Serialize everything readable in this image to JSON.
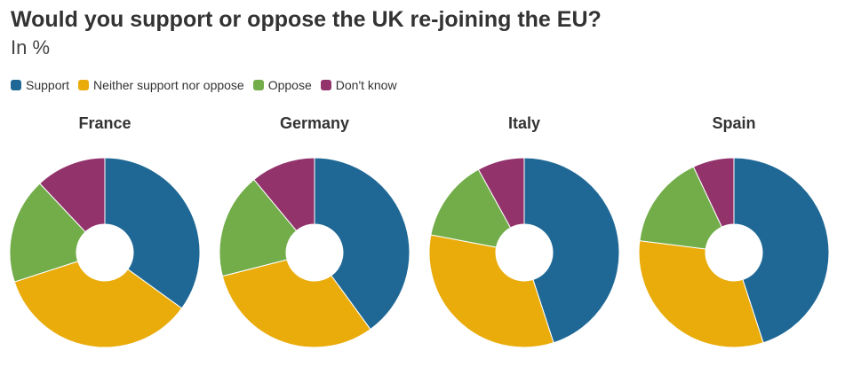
{
  "title": "Would you support or oppose the UK re-joining the EU?",
  "subtitle": "In %",
  "legend": [
    {
      "label": "Support",
      "color": "#1f6895"
    },
    {
      "label": "Neither support nor oppose",
      "color": "#e9ac0b"
    },
    {
      "label": "Oppose",
      "color": "#72ad4a"
    },
    {
      "label": "Don't know",
      "color": "#92336c"
    }
  ],
  "chart_data": [
    {
      "type": "pie",
      "title": "France",
      "categories": [
        "Support",
        "Neither support nor oppose",
        "Oppose",
        "Don't know"
      ],
      "values": [
        35,
        35,
        18,
        12
      ]
    },
    {
      "type": "pie",
      "title": "Germany",
      "categories": [
        "Support",
        "Neither support nor oppose",
        "Oppose",
        "Don't know"
      ],
      "values": [
        40,
        31,
        18,
        11
      ]
    },
    {
      "type": "pie",
      "title": "Italy",
      "categories": [
        "Support",
        "Neither support nor oppose",
        "Oppose",
        "Don't know"
      ],
      "values": [
        45,
        33,
        14,
        8
      ]
    },
    {
      "type": "pie",
      "title": "Spain",
      "categories": [
        "Support",
        "Neither support nor oppose",
        "Oppose",
        "Don't know"
      ],
      "values": [
        45,
        32,
        16,
        7
      ]
    }
  ]
}
